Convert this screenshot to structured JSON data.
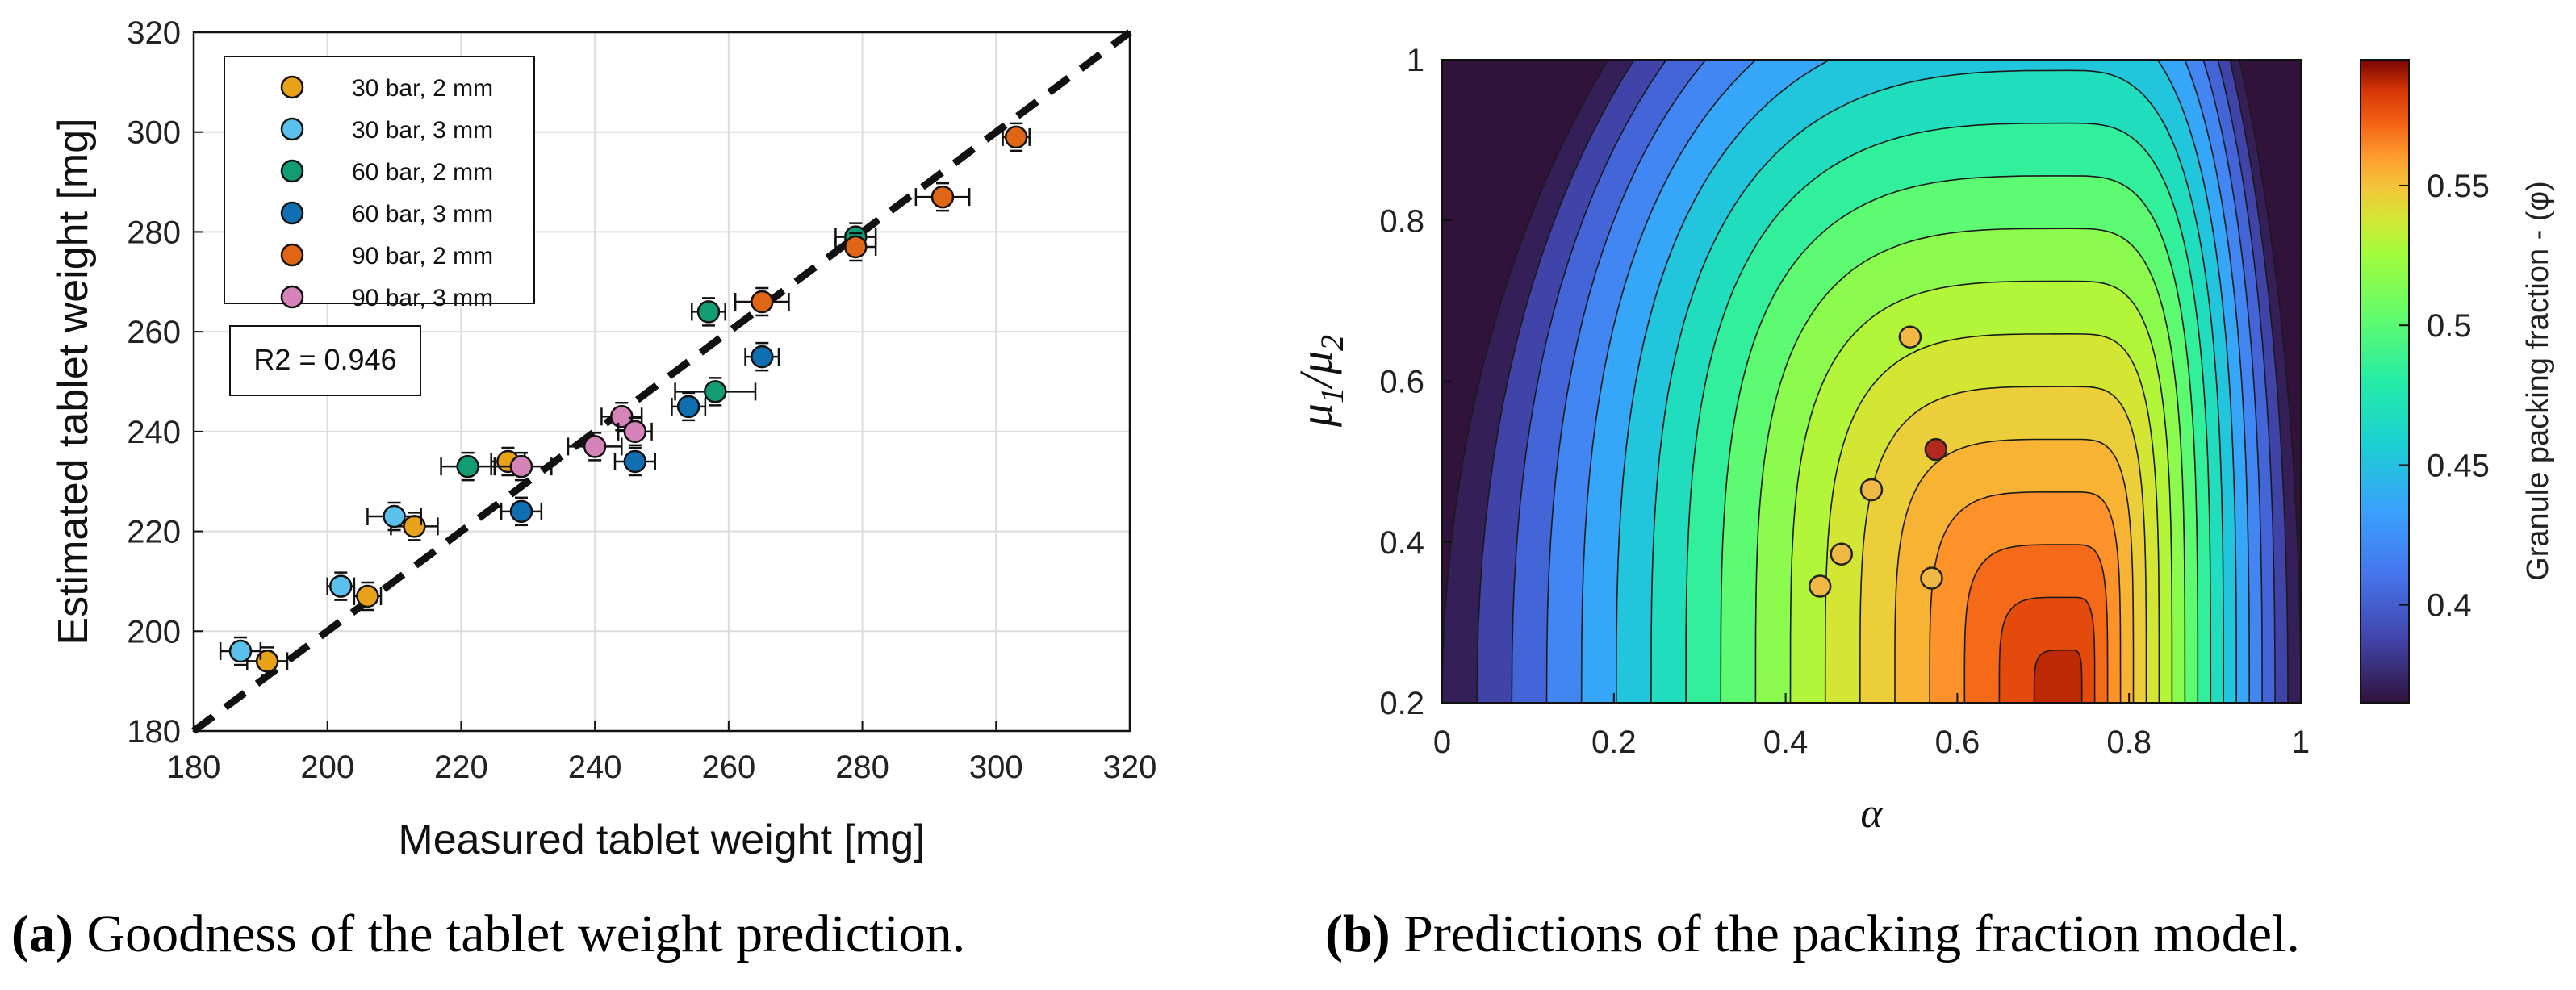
{
  "chart_data": [
    {
      "type": "scatter",
      "title": "",
      "xlabel": "Measured tablet weight [mg]",
      "ylabel": "Estimated tablet weight [mg]",
      "xlim": [
        180,
        320
      ],
      "ylim": [
        180,
        320
      ],
      "xticks": [
        "180",
        "200",
        "220",
        "240",
        "260",
        "280",
        "300",
        "320"
      ],
      "yticks": [
        "180",
        "200",
        "220",
        "240",
        "260",
        "280",
        "300",
        "320"
      ],
      "grid": true,
      "legend_position": "top-left",
      "annotation": "R2 = 0.946",
      "reference_line": {
        "style": "dashed",
        "from": [
          180,
          180
        ],
        "to": [
          320,
          320
        ]
      },
      "series": [
        {
          "name": "30 bar, 2 mm",
          "color": "#E8A21A",
          "points": [
            [
              191,
              194,
              3
            ],
            [
              206,
              207,
              2
            ],
            [
              213,
              221,
              3.5
            ],
            [
              227,
              234,
              2.5
            ]
          ]
        },
        {
          "name": "30 bar, 3 mm",
          "color": "#5BC0EB",
          "points": [
            [
              187,
              196,
              3
            ],
            [
              202,
              209,
              2
            ],
            [
              210,
              223,
              4
            ]
          ]
        },
        {
          "name": "60 bar, 2 mm",
          "color": "#129C73",
          "points": [
            [
              221,
              233,
              4
            ],
            [
              257,
              264,
              2.5
            ],
            [
              258,
              248,
              6
            ],
            [
              279,
              279,
              3
            ]
          ]
        },
        {
          "name": "60 bar, 3 mm",
          "color": "#106FB0",
          "points": [
            [
              229,
              224,
              3
            ],
            [
              246,
              234,
              3
            ],
            [
              254,
              245,
              2.5
            ],
            [
              265,
              255,
              2.5
            ]
          ]
        },
        {
          "name": "90 bar, 2 mm",
          "color": "#E06514",
          "points": [
            [
              265,
              266,
              4
            ],
            [
              279,
              277,
              3
            ],
            [
              292,
              287,
              4
            ],
            [
              303,
              299,
              2
            ]
          ]
        },
        {
          "name": "90 bar, 3 mm",
          "color": "#D583B8",
          "points": [
            [
              229,
              233,
              4.5
            ],
            [
              240,
              237,
              4
            ],
            [
              244,
              243,
              3
            ],
            [
              246,
              240,
              2.5
            ]
          ]
        }
      ]
    },
    {
      "type": "heatmap",
      "title": "",
      "xlabel": "α",
      "ylabel_main": "μ",
      "ylabel_sub1": "1",
      "ylabel_slash": "/μ",
      "ylabel_sub2": "2",
      "xlim": [
        0,
        1
      ],
      "ylim": [
        0.2,
        1
      ],
      "xticks": [
        "0",
        "0.2",
        "0.4",
        "0.6",
        "0.8",
        "1"
      ],
      "yticks": [
        "0.2",
        "0.4",
        "0.6",
        "0.8",
        "1"
      ],
      "colorbar": {
        "label": "Granule packing fraction - (φ)",
        "range": [
          0.365,
          0.595
        ],
        "ticks": [
          "0.4",
          "0.45",
          "0.5",
          "0.55"
        ],
        "colormap": "turbo"
      },
      "contour_levels": 18,
      "points": [
        {
          "alpha": 0.44,
          "ratio": 0.345,
          "color": "#F2B845"
        },
        {
          "alpha": 0.465,
          "ratio": 0.385,
          "color": "#F2B845"
        },
        {
          "alpha": 0.5,
          "ratio": 0.465,
          "color": "#F2B845"
        },
        {
          "alpha": 0.545,
          "ratio": 0.655,
          "color": "#F2B845"
        },
        {
          "alpha": 0.57,
          "ratio": 0.355,
          "color": "#F2B845"
        },
        {
          "alpha": 0.575,
          "ratio": 0.515,
          "color": "#B5281E"
        }
      ]
    }
  ],
  "captions": {
    "a_label": "(a)",
    "a_text": " Goodness of the tablet weight prediction.",
    "b_label": "(b)",
    "b_text": " Predictions of the packing fraction model."
  }
}
